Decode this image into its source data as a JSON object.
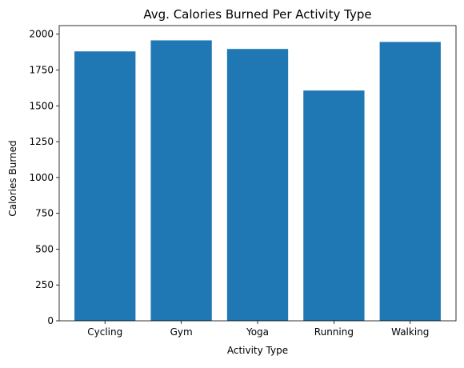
{
  "chart_data": {
    "type": "bar",
    "title": "Avg. Calories Burned Per Activity Type",
    "xlabel": "Activity Type",
    "ylabel": "Calories Burned",
    "categories": [
      "Cycling",
      "Gym",
      "Yoga",
      "Running",
      "Walking"
    ],
    "values": [
      1880,
      1957,
      1897,
      1607,
      1946
    ],
    "ylim": [
      0,
      2060
    ],
    "yticks": [
      0,
      250,
      500,
      750,
      1000,
      1250,
      1500,
      1750,
      2000
    ],
    "grid": false,
    "bar_color": "#1f77b4"
  }
}
